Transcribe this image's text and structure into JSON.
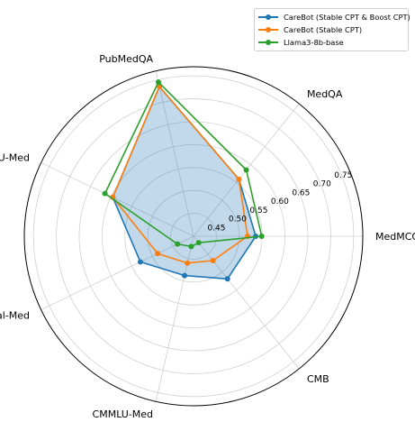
{
  "chart_data": {
    "type": "radar",
    "categories": [
      "MedMCQA",
      "MedQA",
      "PubMedQA",
      "MMLU-Med",
      "C-Eval-Med",
      "CMMLU-Med",
      "CMB"
    ],
    "rlim": [
      0.4,
      0.77
    ],
    "rticks": [
      0.45,
      0.5,
      0.55,
      0.6,
      0.65,
      0.7,
      0.75
    ],
    "rtick_labels": [
      "0.45",
      "0.50",
      "0.55",
      "0.60",
      "0.65",
      "0.70",
      "0.75"
    ],
    "grid": true,
    "legend_position": "top-right",
    "series": [
      {
        "name": "CareBot (Stable CPT & Boost CPT)",
        "color": "#1f77b4",
        "fill": true,
        "values": [
          0.536,
          0.559,
          0.735,
          0.596,
          0.529,
          0.488,
          0.519
        ]
      },
      {
        "name": "CareBot (Stable CPT)",
        "color": "#ff7f0e",
        "fill": false,
        "values": [
          0.518,
          0.559,
          0.735,
          0.596,
          0.487,
          0.46,
          0.468
        ]
      },
      {
        "name": "Llama3-8b-base",
        "color": "#2ca02c",
        "fill": false,
        "values": [
          0.549,
          0.585,
          0.745,
          0.615,
          0.439,
          0.423,
          0.418
        ]
      }
    ]
  }
}
